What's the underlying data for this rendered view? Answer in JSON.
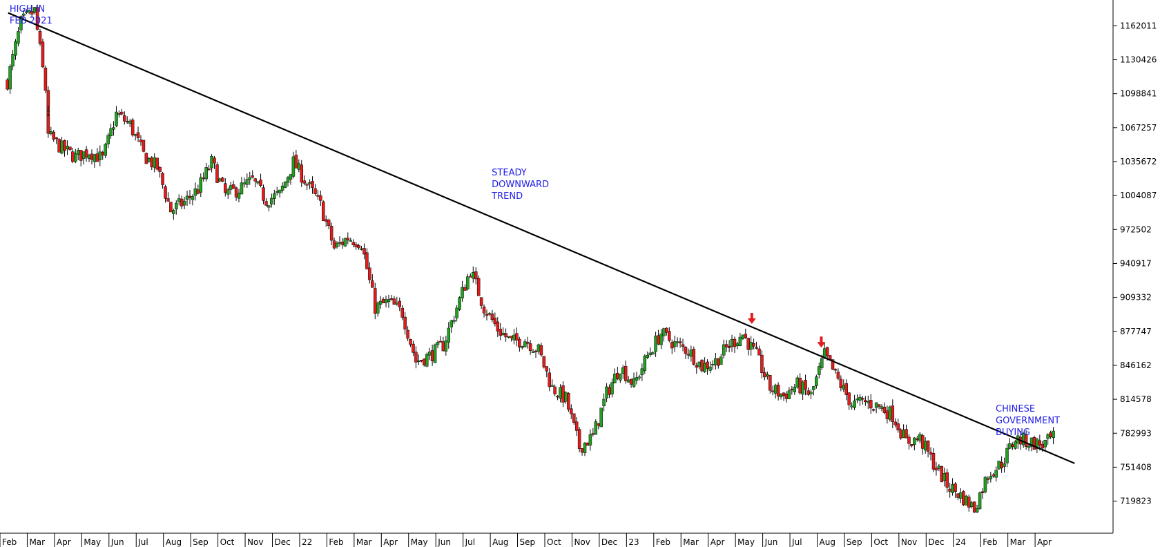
{
  "chart_data": {
    "type": "candlestick",
    "title": "",
    "xlabel": "",
    "ylabel": "",
    "ylim": [
      690000,
      1186000
    ],
    "y_ticks": [
      719823,
      751408,
      782993,
      814578,
      846162,
      877747,
      909332,
      940917,
      972502,
      1004087,
      1035672,
      1067257,
      1098841,
      1130426,
      1162011
    ],
    "x_labels": [
      "Feb",
      "Mar",
      "Apr",
      "May",
      "Jun",
      "Jul",
      "Aug",
      "Sep",
      "Oct",
      "Nov",
      "Dec",
      "22",
      "Feb",
      "Mar",
      "Apr",
      "May",
      "Jun",
      "Jul",
      "Aug",
      "Sep",
      "Oct",
      "Nov",
      "Dec",
      "23",
      "Feb",
      "Mar",
      "Apr",
      "May",
      "Jun",
      "Jul",
      "Aug",
      "Sep",
      "Oct",
      "Nov",
      "Dec",
      "24",
      "Feb",
      "Mar",
      "Apr"
    ],
    "x_label_start": "2021-02",
    "up_color": "#22a022",
    "down_color": "#e01c1c",
    "trendline": {
      "color": "#000000",
      "from": [
        "2021-02",
        1174000
      ],
      "to": [
        "2024-04",
        755000
      ]
    },
    "price_path": [
      [
        "2021-02",
        1110000
      ],
      [
        "2021-02",
        1165000
      ],
      [
        "2021-03",
        1176000
      ],
      [
        "2021-03",
        1085000
      ],
      [
        "2021-03",
        1060000
      ],
      [
        "2021-04",
        1048000
      ],
      [
        "2021-04",
        1040000
      ],
      [
        "2021-05",
        1045000
      ],
      [
        "2021-05",
        1038000
      ],
      [
        "2021-06",
        1080000
      ],
      [
        "2021-06",
        1070000
      ],
      [
        "2021-07",
        1042000
      ],
      [
        "2021-07",
        1030000
      ],
      [
        "2021-08",
        990000
      ],
      [
        "2021-08",
        998000
      ],
      [
        "2021-09",
        1010000
      ],
      [
        "2021-09",
        1035000
      ],
      [
        "2021-10",
        1005000
      ],
      [
        "2021-10",
        1010000
      ],
      [
        "2021-11",
        1018000
      ],
      [
        "2021-11",
        1000000
      ],
      [
        "2021-12",
        1005000
      ],
      [
        "2021-12",
        1035000
      ],
      [
        "2022-01",
        1015000
      ],
      [
        "2022-01",
        995000
      ],
      [
        "2022-02",
        955000
      ],
      [
        "2022-02",
        965000
      ],
      [
        "2022-03",
        960000
      ],
      [
        "2022-03",
        900000
      ],
      [
        "2022-04",
        905000
      ],
      [
        "2022-04",
        895000
      ],
      [
        "2022-05",
        850000
      ],
      [
        "2022-05",
        855000
      ],
      [
        "2022-06",
        865000
      ],
      [
        "2022-06",
        900000
      ],
      [
        "2022-07",
        935000
      ],
      [
        "2022-07",
        900000
      ],
      [
        "2022-08",
        880000
      ],
      [
        "2022-08",
        868000
      ],
      [
        "2022-09",
        870000
      ],
      [
        "2022-09",
        860000
      ],
      [
        "2022-10",
        825000
      ],
      [
        "2022-10",
        815000
      ],
      [
        "2022-11",
        770000
      ],
      [
        "2022-11",
        780000
      ],
      [
        "2022-12",
        820000
      ],
      [
        "2022-12",
        845000
      ],
      [
        "2023-01",
        828000
      ],
      [
        "2023-01",
        855000
      ],
      [
        "2023-02",
        876000
      ],
      [
        "2023-02",
        866000
      ],
      [
        "2023-03",
        860000
      ],
      [
        "2023-03",
        845000
      ],
      [
        "2023-04",
        850000
      ],
      [
        "2023-04",
        865000
      ],
      [
        "2023-05",
        875000
      ],
      [
        "2023-05",
        855000
      ],
      [
        "2023-06",
        825000
      ],
      [
        "2023-06",
        818000
      ],
      [
        "2023-07",
        828000
      ],
      [
        "2023-07",
        818000
      ],
      [
        "2023-08",
        856000
      ],
      [
        "2023-08",
        832000
      ],
      [
        "2023-09",
        810000
      ],
      [
        "2023-09",
        812000
      ],
      [
        "2023-10",
        808000
      ],
      [
        "2023-10",
        800000
      ],
      [
        "2023-11",
        775000
      ],
      [
        "2023-11",
        778000
      ],
      [
        "2023-12",
        755000
      ],
      [
        "2023-12",
        735000
      ],
      [
        "2024-01",
        725000
      ],
      [
        "2024-01",
        713000
      ],
      [
        "2024-02",
        745000
      ],
      [
        "2024-02",
        755000
      ],
      [
        "2024-03",
        778000
      ],
      [
        "2024-03",
        775000
      ],
      [
        "2024-04",
        772000
      ],
      [
        "2024-04",
        780000
      ]
    ],
    "annotations": [
      {
        "text": "HIGH IN\nFEB 2021",
        "date": "2021-02",
        "value": 1180000
      },
      {
        "text": "STEADY\nDOWNWARD\nTREND",
        "date": "2022-07",
        "value": 1028000
      },
      {
        "text": "CHINESE\nGOVERNMENT\nBUYING",
        "date": "2024-02",
        "value": 808000
      }
    ],
    "markers": [
      {
        "type": "down-arrow",
        "color": "#e01c1c",
        "date": "2023-05",
        "value": 884000
      },
      {
        "type": "down-arrow",
        "color": "#e01c1c",
        "date": "2023-08",
        "value": 862000
      }
    ],
    "grid": false
  }
}
